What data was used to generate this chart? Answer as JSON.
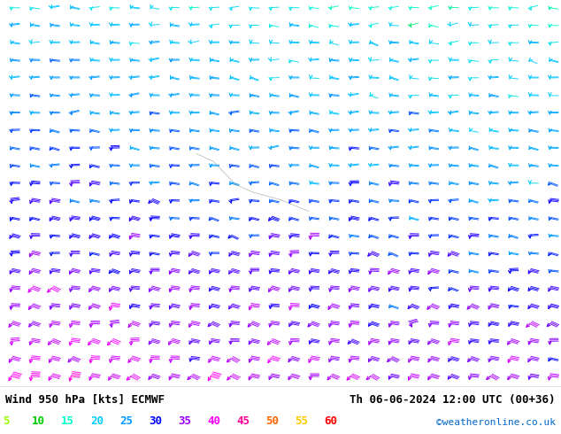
{
  "title_left": "Wind 950 hPa [kts] ECMWF",
  "title_right": "Th 06-06-2024 12:00 UTC (00+36)",
  "credit": "©weatheronline.co.uk",
  "legend_values": [
    5,
    10,
    15,
    20,
    25,
    30,
    35,
    40,
    45,
    50,
    55,
    60
  ],
  "legend_colors": [
    "#99ff00",
    "#00cc00",
    "#00ffcc",
    "#00ccff",
    "#0099ff",
    "#0000ff",
    "#9900ff",
    "#ff00ff",
    "#ff0099",
    "#ff6600",
    "#ffcc00",
    "#ff0000"
  ],
  "background_map_color": "#d3d3d3",
  "land_light_color": "#ccffcc",
  "sea_color": "#ffffff",
  "fig_width": 6.34,
  "fig_height": 4.9,
  "dpi": 100,
  "bottom_bar_color": "#ffffff",
  "title_fontsize": 9,
  "legend_fontsize": 9,
  "credit_color": "#0066cc",
  "credit_fontsize": 8
}
